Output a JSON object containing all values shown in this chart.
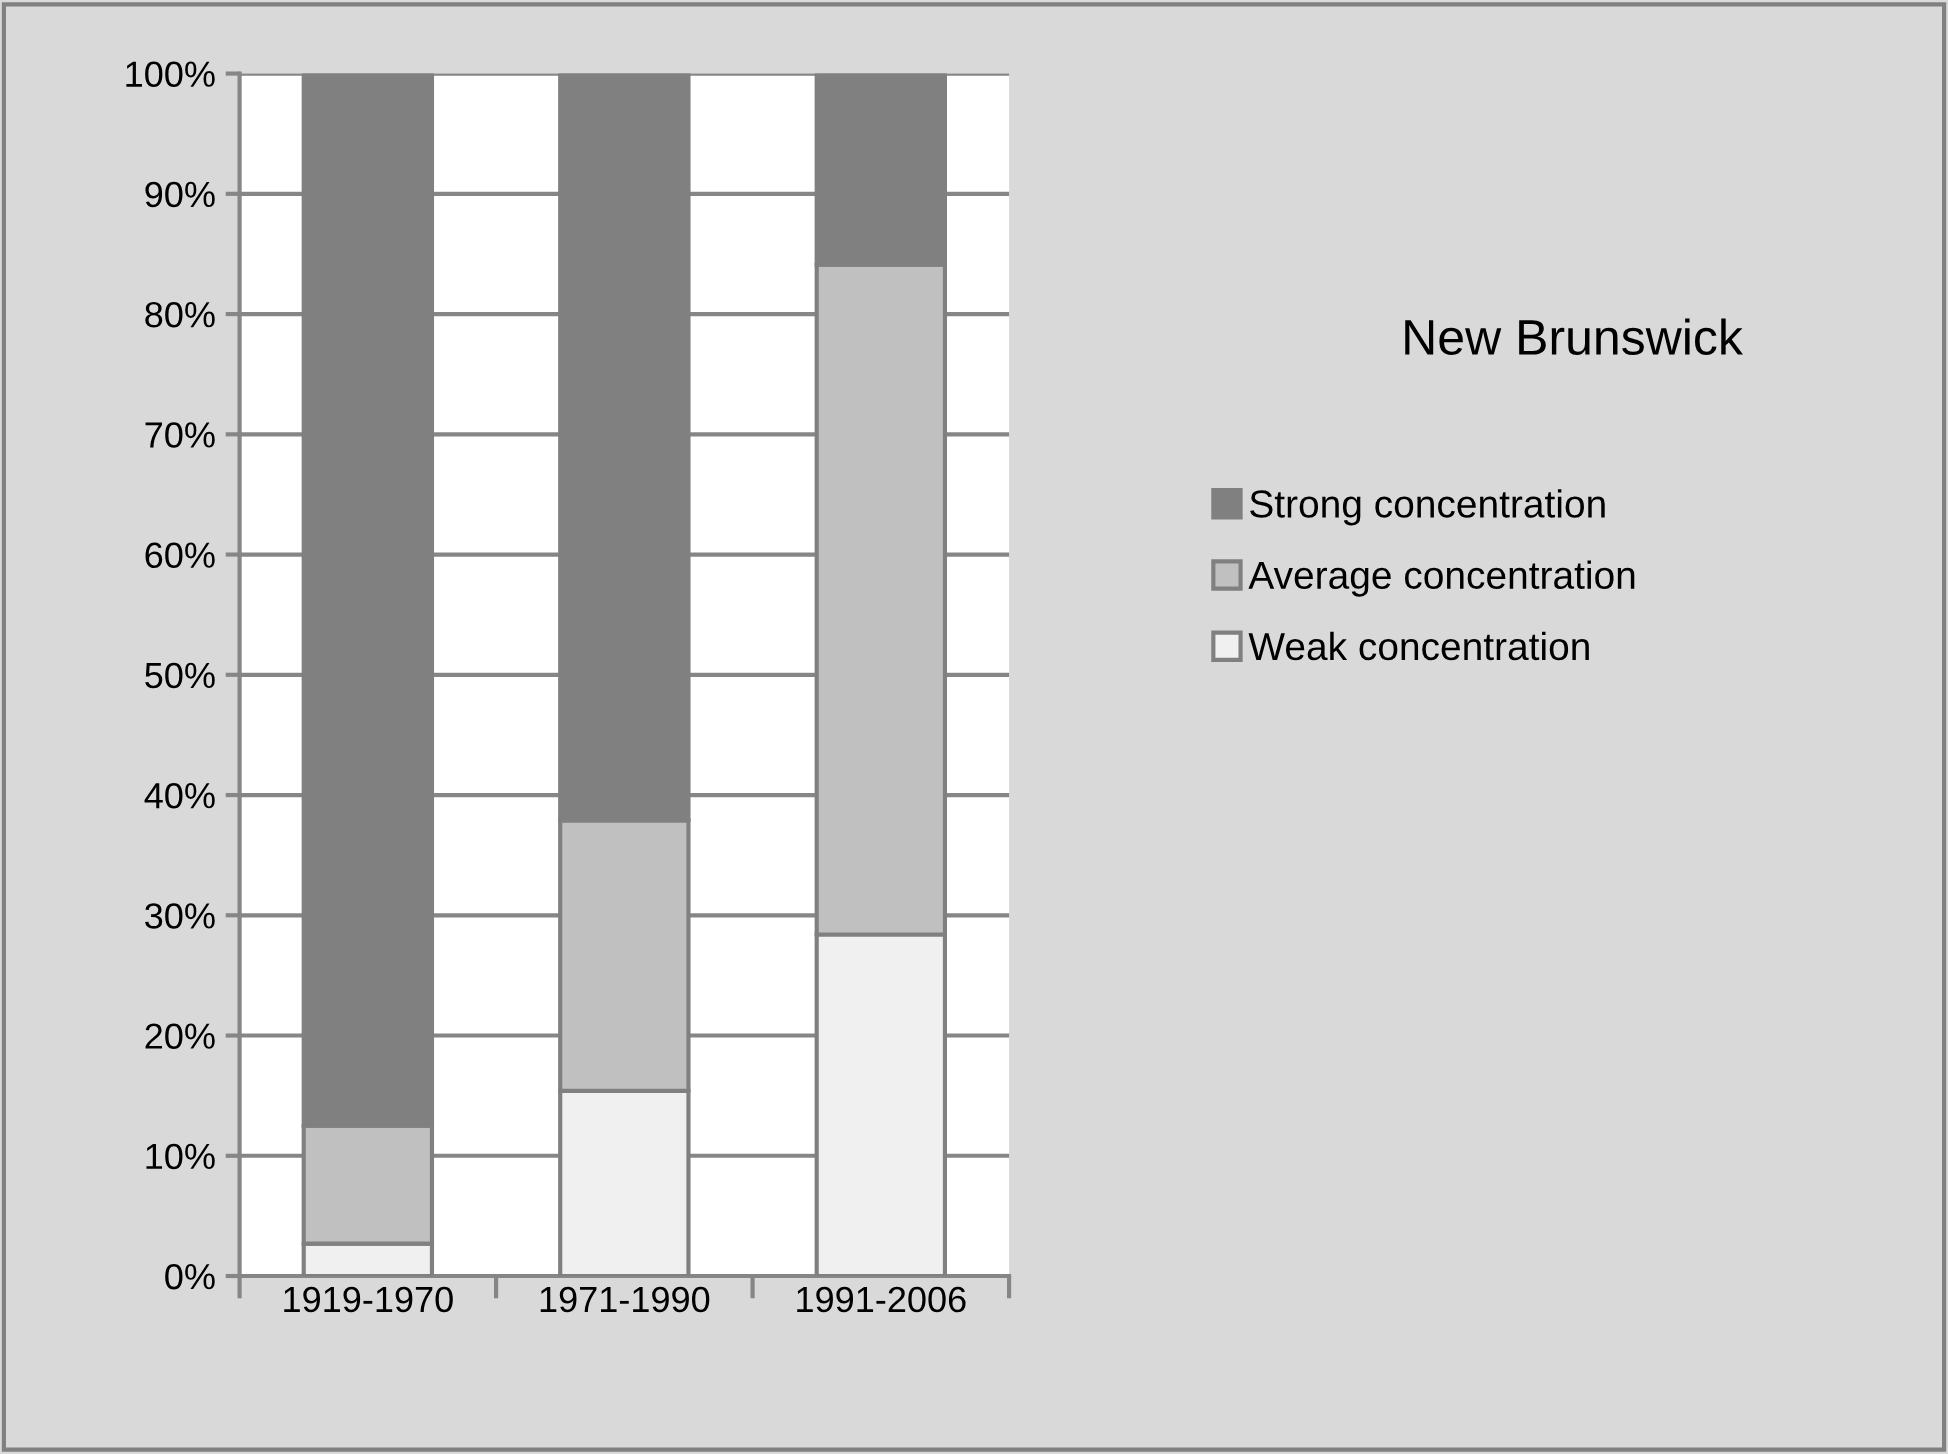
{
  "chart_data": {
    "type": "bar",
    "title": "New Brunswick",
    "stacked": true,
    "categories": [
      "1919-1970",
      "1971-1990",
      "1991-2006"
    ],
    "series": [
      {
        "name": "Weak concentration",
        "color": "#f0f0f0",
        "values": [
          2.7,
          15.4,
          28.4
        ]
      },
      {
        "name": "Average concentration",
        "color": "#c0c0c0",
        "values": [
          9.8,
          22.5,
          55.7
        ]
      },
      {
        "name": "Strong concentration",
        "color": "#808080",
        "values": [
          87.5,
          62.1,
          15.9
        ]
      }
    ],
    "ylim": [
      0,
      100
    ],
    "yticks": [
      {
        "value": 0,
        "label": "0%"
      },
      {
        "value": 10,
        "label": "10%"
      },
      {
        "value": 20,
        "label": "20%"
      },
      {
        "value": 30,
        "label": "30%"
      },
      {
        "value": 40,
        "label": "40%"
      },
      {
        "value": 50,
        "label": "50%"
      },
      {
        "value": 60,
        "label": "60%"
      },
      {
        "value": 70,
        "label": "70%"
      },
      {
        "value": 80,
        "label": "80%"
      },
      {
        "value": 90,
        "label": "90%"
      },
      {
        "value": 100,
        "label": "100%"
      }
    ],
    "grid": "y",
    "legend": "right"
  }
}
